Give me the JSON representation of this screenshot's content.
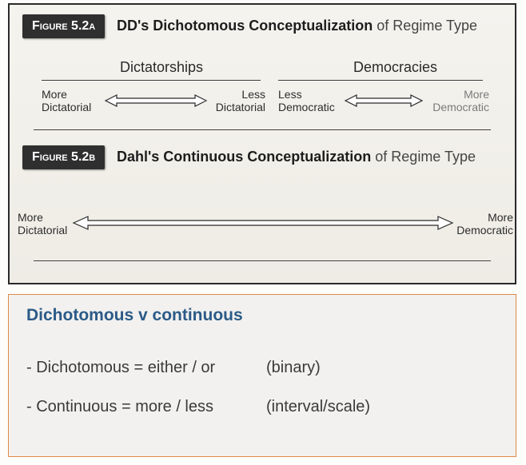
{
  "figureA": {
    "badge": "Figure 5.2a",
    "title_main": "DD's Dichotomous Conceptualization",
    "title_tail": " of Regime Type",
    "left_header": "Dictatorships",
    "right_header": "Democracies",
    "left_min": "More\nDictatorial",
    "left_max": "Less\nDictatorial",
    "right_min": "Less\nDemocratic",
    "right_max": "More\nDemocratic",
    "arrow_stroke": "#2a2a2a",
    "arrow_fill": "#ffffff"
  },
  "figureB": {
    "badge": "Figure 5.2b",
    "title_main": "Dahl's Continuous Conceptualization",
    "title_tail": " of Regime Type",
    "left_label": "More\nDictatorial",
    "right_label": "More\nDemocratic",
    "arrow_stroke": "#2a2a2a",
    "arrow_fill": "#ffffff"
  },
  "divider_color": "#3a3a3a",
  "notes": {
    "heading": "Dichotomous v continuous",
    "line1_term": "- Dichotomous = either / or",
    "line1_paren": "(binary)",
    "line2_term": "- Continuous  =  more / less",
    "line2_paren": "(interval/scale)",
    "heading_color": "#2b5a87",
    "text_color": "#3a3a3a",
    "border_color": "#e08a4a",
    "bg_color": "#f2f1ef"
  },
  "page_bg": "#fdfdfb"
}
